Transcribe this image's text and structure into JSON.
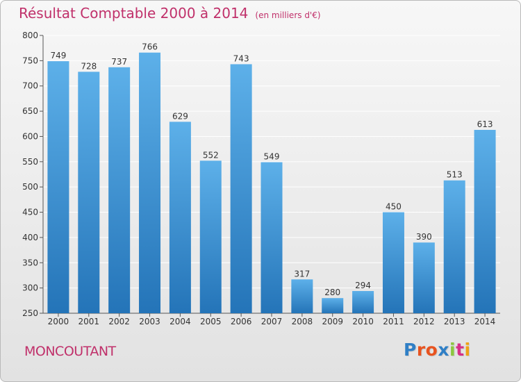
{
  "title": "Résultat Comptable 2000 à 2014",
  "unit_note": "(en milliers d'€)",
  "town": "MONCOUTANT",
  "logo": {
    "text": "Proxiti",
    "letter_colors": [
      "#2f7fc6",
      "#e8531f",
      "#e8531f",
      "#2f7fc6",
      "#8cc63f",
      "#d72f87",
      "#f0a216"
    ]
  },
  "colors": {
    "title": "#c0306a",
    "bar_top": "#5db0e9",
    "bar_bottom": "#2474b8",
    "grid": "#ffffff"
  },
  "chart_data": {
    "type": "bar",
    "categories": [
      "2000",
      "2001",
      "2002",
      "2003",
      "2004",
      "2005",
      "2006",
      "2007",
      "2008",
      "2009",
      "2010",
      "2011",
      "2012",
      "2013",
      "2014"
    ],
    "values": [
      749,
      728,
      737,
      766,
      629,
      552,
      743,
      549,
      317,
      280,
      294,
      450,
      390,
      513,
      613
    ],
    "ylim": [
      250,
      800
    ],
    "yticks": [
      250,
      300,
      350,
      400,
      450,
      500,
      550,
      600,
      650,
      700,
      750,
      800
    ],
    "data_labels": true,
    "grid": true
  }
}
